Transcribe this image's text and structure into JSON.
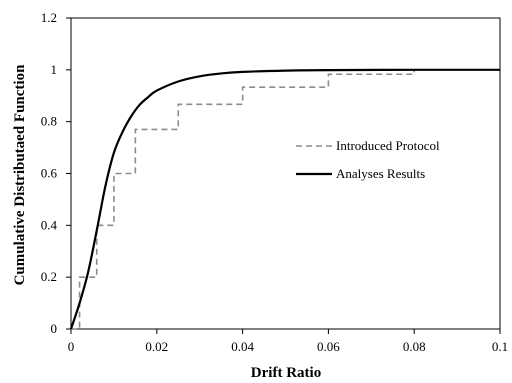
{
  "chart_data": {
    "type": "line",
    "title": "",
    "xlabel": "Drift Ratio",
    "ylabel": "Cumulative Distributaed Function",
    "xlim": [
      0,
      0.1
    ],
    "ylim": [
      0,
      1.2
    ],
    "xticks": [
      0,
      0.02,
      0.04,
      0.06,
      0.08,
      0.1
    ],
    "xtick_labels": [
      "0",
      "0.02",
      "0.04",
      "0.06",
      "0.08",
      "0.1"
    ],
    "yticks": [
      0,
      0.2,
      0.4,
      0.6,
      0.8,
      1,
      1.2
    ],
    "ytick_labels": [
      "0",
      "0.2",
      "0.4",
      "0.6",
      "0.8",
      "1",
      "1.2"
    ],
    "grid": false,
    "legend_position": "right",
    "series": [
      {
        "name": "Introduced Protocol",
        "style": "dashed-step",
        "color": "#8c8c8c",
        "x": [
          0,
          0.002,
          0.002,
          0.006,
          0.006,
          0.01,
          0.01,
          0.015,
          0.015,
          0.025,
          0.025,
          0.04,
          0.04,
          0.06,
          0.06,
          0.08,
          0.08
        ],
        "y": [
          0,
          0,
          0.2,
          0.2,
          0.4,
          0.4,
          0.6,
          0.6,
          0.77,
          0.77,
          0.867,
          0.867,
          0.933,
          0.933,
          0.983,
          0.983,
          1.0
        ]
      },
      {
        "name": "Analyses Results",
        "style": "solid",
        "color": "#000000",
        "x": [
          0,
          0.002,
          0.004,
          0.006,
          0.008,
          0.01,
          0.012,
          0.014,
          0.016,
          0.018,
          0.02,
          0.025,
          0.03,
          0.035,
          0.04,
          0.05,
          0.06,
          0.08,
          0.1
        ],
        "y": [
          0,
          0.1,
          0.22,
          0.38,
          0.55,
          0.68,
          0.76,
          0.82,
          0.865,
          0.895,
          0.92,
          0.955,
          0.975,
          0.986,
          0.992,
          0.997,
          0.999,
          1.0,
          1.0
        ]
      }
    ]
  }
}
